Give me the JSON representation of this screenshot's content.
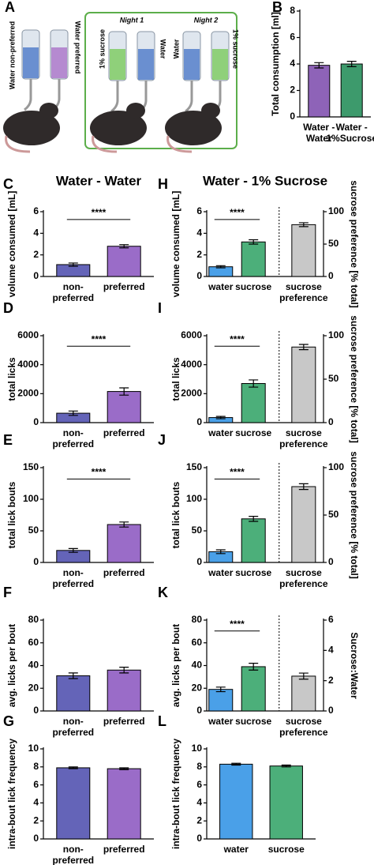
{
  "illustration": {
    "panel": "A",
    "bottle_left": "Water non-preferred",
    "bottle_right": "Water preferred",
    "night1": "Night 1",
    "night1_left": "1% sucrose",
    "night1_right": "Water",
    "night2": "Night 2",
    "night2_left": "Water",
    "night2_right": "1% sucrose"
  },
  "chart_data": [
    {
      "type": "bar",
      "panel": "B",
      "ylabel": "Total consumption [ml]",
      "ylim": [
        0,
        8
      ],
      "yticks": [
        0,
        2,
        4,
        6,
        8
      ],
      "categories": [
        [
          "Water -",
          "Water"
        ],
        [
          "Water -",
          "1%Sucrose"
        ]
      ],
      "values": [
        3.9,
        4.0
      ],
      "errors": [
        0.2,
        0.2
      ],
      "colors": [
        "#8e63b8",
        "#3d9a6c"
      ]
    },
    {
      "type": "bar",
      "panel": "C",
      "title": "Water - Water",
      "ylabel": "volume consumed [mL]",
      "ylim": [
        0,
        6
      ],
      "yticks": [
        0,
        2,
        4,
        6
      ],
      "categories": [
        [
          "non-",
          "preferred"
        ],
        [
          "preferred"
        ]
      ],
      "values": [
        1.1,
        2.8
      ],
      "errors": [
        0.15,
        0.15
      ],
      "colors": [
        "#6464b8",
        "#9a6cc8"
      ],
      "significance": "****"
    },
    {
      "type": "bar",
      "panel": "D",
      "ylabel": "total licks",
      "ylim": [
        0,
        6000
      ],
      "yticks": [
        0,
        2000,
        4000,
        6000
      ],
      "categories": [
        [
          "non-",
          "preferred"
        ],
        [
          "preferred"
        ]
      ],
      "values": [
        650,
        2150
      ],
      "errors": [
        150,
        250
      ],
      "colors": [
        "#6464b8",
        "#9a6cc8"
      ],
      "significance": "****"
    },
    {
      "type": "bar",
      "panel": "E",
      "ylabel": "total lick bouts",
      "ylim": [
        0,
        150
      ],
      "yticks": [
        0,
        50,
        100,
        150
      ],
      "categories": [
        [
          "non-",
          "preferred"
        ],
        [
          "preferred"
        ]
      ],
      "values": [
        19,
        60
      ],
      "errors": [
        3,
        4
      ],
      "colors": [
        "#6464b8",
        "#9a6cc8"
      ],
      "significance": "****"
    },
    {
      "type": "bar",
      "panel": "F",
      "ylabel": "avg. licks per bout",
      "ylim": [
        0,
        80
      ],
      "yticks": [
        0,
        20,
        40,
        60,
        80
      ],
      "categories": [
        [
          "non-",
          "preferred"
        ],
        [
          "preferred"
        ]
      ],
      "values": [
        31,
        36
      ],
      "errors": [
        2.5,
        2.5
      ],
      "colors": [
        "#6464b8",
        "#9a6cc8"
      ]
    },
    {
      "type": "bar",
      "panel": "G",
      "ylabel": "intra-bout lick frequency",
      "ylim": [
        0,
        10
      ],
      "yticks": [
        0,
        2,
        4,
        6,
        8,
        10
      ],
      "categories": [
        [
          "non-",
          "preferred"
        ],
        [
          "preferred"
        ]
      ],
      "values": [
        7.9,
        7.8
      ],
      "errors": [
        0.1,
        0.1
      ],
      "colors": [
        "#6464b8",
        "#9a6cc8"
      ]
    },
    {
      "type": "bar",
      "panel": "H",
      "title": "Water - 1% Sucrose",
      "ylabel": "volume consumed [mL]",
      "ylim": [
        0,
        6
      ],
      "yticks": [
        0,
        2,
        4,
        6
      ],
      "y2label": "sucrose preference [% total]",
      "y2lim": [
        0,
        100
      ],
      "y2ticks": [
        0,
        50,
        100
      ],
      "categories": [
        [
          "water"
        ],
        [
          "sucrose"
        ],
        [
          "sucrose",
          "preference"
        ]
      ],
      "values": [
        0.9,
        3.2,
        80
      ],
      "errors": [
        0.1,
        0.2,
        3
      ],
      "axes": [
        "y",
        "y",
        "y2"
      ],
      "colors": [
        "#4aa0e8",
        "#4caf7a",
        "#c8c8c8"
      ],
      "significance": "****"
    },
    {
      "type": "bar",
      "panel": "I",
      "ylabel": "total licks",
      "ylim": [
        0,
        6000
      ],
      "yticks": [
        0,
        2000,
        4000,
        6000
      ],
      "y2label": "sucrose preference [% total]",
      "y2lim": [
        0,
        100
      ],
      "y2ticks": [
        0,
        50,
        100
      ],
      "categories": [
        [
          "water"
        ],
        [
          "sucrose"
        ],
        [
          "sucrose",
          "preference"
        ]
      ],
      "values": [
        350,
        2700,
        87
      ],
      "errors": [
        80,
        250,
        3
      ],
      "axes": [
        "y",
        "y",
        "y2"
      ],
      "colors": [
        "#4aa0e8",
        "#4caf7a",
        "#c8c8c8"
      ],
      "significance": "****"
    },
    {
      "type": "bar",
      "panel": "J",
      "ylabel": "total lick bouts",
      "ylim": [
        0,
        150
      ],
      "yticks": [
        0,
        50,
        100,
        150
      ],
      "y2label": "sucrose preference [% total]",
      "y2lim": [
        0,
        100
      ],
      "y2ticks": [
        0,
        50,
        100
      ],
      "categories": [
        [
          "water"
        ],
        [
          "sucrose"
        ],
        [
          "sucrose",
          "preference"
        ]
      ],
      "values": [
        17,
        69,
        80
      ],
      "errors": [
        3,
        4,
        3
      ],
      "axes": [
        "y",
        "y",
        "y2"
      ],
      "colors": [
        "#4aa0e8",
        "#4caf7a",
        "#c8c8c8"
      ],
      "significance": "****"
    },
    {
      "type": "bar",
      "panel": "K",
      "ylabel": "avg. licks per bout",
      "ylim": [
        0,
        80
      ],
      "yticks": [
        0,
        20,
        40,
        60,
        80
      ],
      "y2label": "Sucrose:Water",
      "y2lim": [
        0,
        6
      ],
      "y2ticks": [
        0,
        2,
        4,
        6
      ],
      "categories": [
        [
          "water"
        ],
        [
          "sucrose"
        ],
        [
          "sucrose",
          "preference"
        ]
      ],
      "values": [
        19,
        39,
        2.3
      ],
      "errors": [
        2,
        3,
        0.2
      ],
      "axes": [
        "y",
        "y",
        "y2"
      ],
      "colors": [
        "#4aa0e8",
        "#4caf7a",
        "#c8c8c8"
      ],
      "significance": "****"
    },
    {
      "type": "bar",
      "panel": "L",
      "ylabel": "intra-bout lick frequency",
      "ylim": [
        0,
        10
      ],
      "yticks": [
        0,
        2,
        4,
        6,
        8,
        10
      ],
      "categories": [
        [
          "water"
        ],
        [
          "sucrose"
        ]
      ],
      "values": [
        8.3,
        8.1
      ],
      "errors": [
        0.1,
        0.1
      ],
      "colors": [
        "#4aa0e8",
        "#4caf7a"
      ]
    }
  ]
}
